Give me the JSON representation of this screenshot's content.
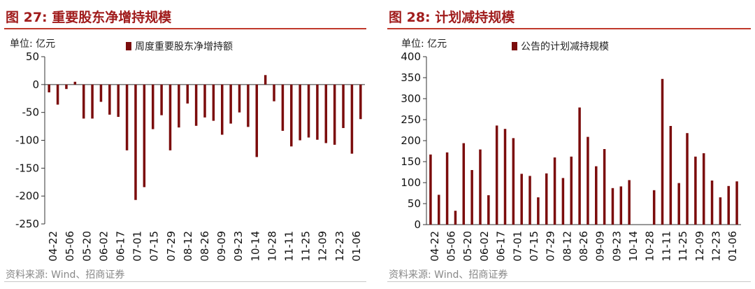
{
  "colors": {
    "bar": "#7b0c0c",
    "title": "#a01c1c",
    "rule": "#c0392b",
    "source": "#888888"
  },
  "chart_data": [
    {
      "type": "bar",
      "title": "图 27: 重要股东净增持规模",
      "unit_label": "单位: 亿元",
      "legend": "周度重要股东净增持额",
      "source": "资料来源: Wind、招商证券",
      "ylim": [
        -250,
        50
      ],
      "yticks": [
        50,
        0,
        -50,
        -100,
        -150,
        -200,
        -250
      ],
      "xtick_labels": [
        "04-22",
        "05-06",
        "05-20",
        "06-02",
        "06-17",
        "07-01",
        "07-15",
        "07-29",
        "08-12",
        "08-26",
        "09-09",
        "09-23",
        "10-14",
        "10-28",
        "11-11",
        "11-25",
        "12-09",
        "12-23",
        "01-06"
      ],
      "values": [
        -14,
        -36,
        -8,
        5,
        -61,
        -61,
        -31,
        -54,
        -58,
        -118,
        -207,
        -184,
        -80,
        -55,
        -118,
        -77,
        -34,
        -74,
        -59,
        -65,
        -90,
        -70,
        -50,
        -76,
        -130,
        17,
        -30,
        -83,
        -111,
        -100,
        -95,
        -99,
        -105,
        -108,
        -78,
        -124,
        -62
      ]
    },
    {
      "type": "bar",
      "title": "图 28: 计划减持规模",
      "unit_label": "单位: 亿元",
      "legend": "公告的计划减持规模",
      "source": "资料来源: Wind、招商证券",
      "ylim": [
        0,
        400
      ],
      "yticks": [
        400,
        350,
        300,
        250,
        200,
        150,
        100,
        50,
        0
      ],
      "xtick_labels": [
        "04-22",
        "05-06",
        "05-20",
        "06-02",
        "06-17",
        "07-01",
        "07-15",
        "07-29",
        "08-12",
        "08-26",
        "09-09",
        "09-23",
        "10-14",
        "10-28",
        "11-11",
        "11-25",
        "12-09",
        "12-23",
        "01-06"
      ],
      "values": [
        167,
        71,
        172,
        33,
        194,
        130,
        179,
        70,
        236,
        228,
        206,
        121,
        116,
        65,
        122,
        160,
        111,
        162,
        279,
        209,
        139,
        180,
        87,
        91,
        106,
        0,
        0,
        82,
        347,
        235,
        99,
        218,
        162,
        170,
        105,
        65,
        92,
        103
      ]
    }
  ]
}
